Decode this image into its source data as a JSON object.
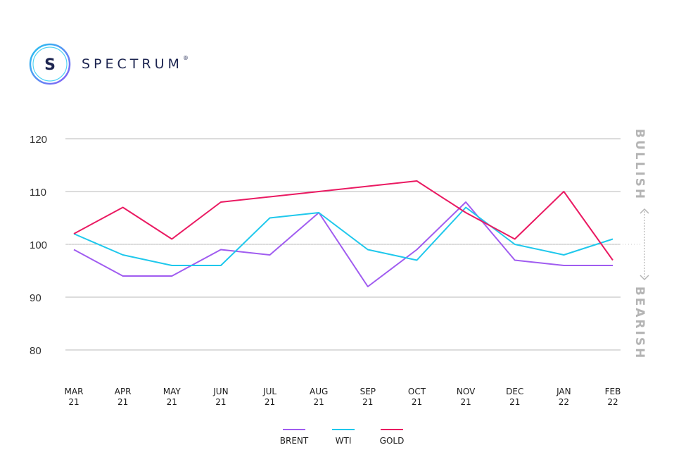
{
  "brand": {
    "name": "SPECTRUM",
    "mark": "S",
    "registered": "®",
    "colors": {
      "ring_start": "#24c7f0",
      "ring_end": "#8a5cf6",
      "text": "#1c2450"
    }
  },
  "chart_data": {
    "type": "line",
    "title": "",
    "xlabel": "",
    "ylabel": "",
    "categories": [
      "MAR 21",
      "APR 21",
      "MAY 21",
      "JUN 21",
      "JUL 21",
      "AUG 21",
      "SEP 21",
      "OCT 21",
      "NOV 21",
      "DEC 21",
      "JAN 22",
      "FEB 22"
    ],
    "category_lines": [
      [
        "MAR",
        "21"
      ],
      [
        "APR",
        "21"
      ],
      [
        "MAY",
        "21"
      ],
      [
        "JUN",
        "21"
      ],
      [
        "JUL",
        "21"
      ],
      [
        "AUG",
        "21"
      ],
      [
        "SEP",
        "21"
      ],
      [
        "OCT",
        "21"
      ],
      [
        "NOV",
        "21"
      ],
      [
        "DEC",
        "21"
      ],
      [
        "JAN",
        "22"
      ],
      [
        "FEB",
        "22"
      ]
    ],
    "ylim": [
      80,
      120
    ],
    "yticks": [
      80,
      90,
      100,
      110,
      120
    ],
    "reference_value": 100,
    "grid": true,
    "legend_position": "bottom-center",
    "series": [
      {
        "name": "BRENT",
        "color": "#a05cf0",
        "values": [
          99,
          94,
          94,
          99,
          98,
          106,
          92,
          99,
          108,
          97,
          96,
          96
        ]
      },
      {
        "name": "WTI",
        "color": "#1fc8ec",
        "values": [
          102,
          98,
          96,
          96,
          105,
          106,
          99,
          97,
          107,
          100,
          98,
          101
        ]
      },
      {
        "name": "GOLD",
        "color": "#ea1a62",
        "values": [
          102,
          107,
          101,
          108,
          109,
          110,
          111,
          112,
          106,
          101,
          110,
          97
        ]
      }
    ],
    "annotations": {
      "top": "BULLISH",
      "bottom": "BEARISH",
      "color": "#b4b4b4"
    }
  }
}
